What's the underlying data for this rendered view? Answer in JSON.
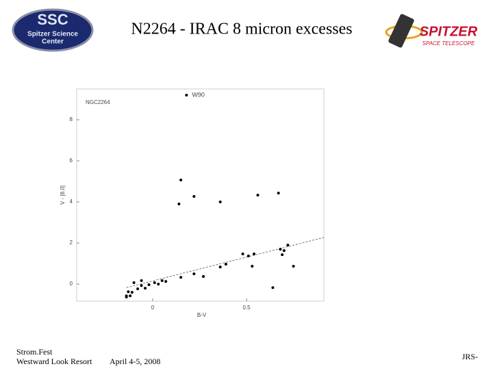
{
  "slide": {
    "title": "N2264 - IRAC 8 micron excesses",
    "footer_left": [
      "Strom.Fest",
      "Westward Look Resort"
    ],
    "footer_center": "April 4-5, 2008",
    "footer_right": "JRS-"
  },
  "logos": {
    "ssc": {
      "main": "SSC",
      "line1": "Spitzer Science",
      "line2": "Center"
    },
    "spitzer": {
      "main": "SPITZER",
      "sub": "SPACE TELESCOPE"
    }
  },
  "chart_data": {
    "type": "scatter",
    "annotation": "NGC2264",
    "xlabel": "B-V",
    "ylabel": "V - [8.0]",
    "xlim": [
      -0.405,
      0.912
    ],
    "ylim": [
      -0.83,
      9.5
    ],
    "xticks": [
      0,
      0.5
    ],
    "yticks": [
      0,
      2,
      4,
      6,
      8
    ],
    "color": "#000000",
    "point_labels": [
      {
        "index": 0,
        "label": "W90"
      }
    ],
    "x": [
      0.18,
      0.15,
      0.22,
      0.14,
      0.36,
      0.56,
      0.67,
      0.48,
      0.51,
      0.54,
      0.68,
      0.7,
      0.72,
      0.69,
      0.75,
      0.53,
      0.36,
      0.39,
      0.27,
      0.22,
      0.15,
      0.64,
      0.05,
      0.07,
      0.03,
      0.01,
      -0.02,
      -0.06,
      -0.06,
      -0.1,
      -0.08,
      -0.11,
      -0.13,
      -0.14,
      -0.12,
      -0.14,
      -0.04
    ],
    "y": [
      9.2,
      5.07,
      4.27,
      3.9,
      4.0,
      4.33,
      4.43,
      1.47,
      1.37,
      1.47,
      1.7,
      1.63,
      1.9,
      1.43,
      0.87,
      0.87,
      0.83,
      0.97,
      0.37,
      0.5,
      0.33,
      -0.17,
      0.17,
      0.13,
      0.0,
      0.07,
      -0.03,
      0.17,
      -0.07,
      0.07,
      -0.23,
      -0.4,
      -0.37,
      -0.57,
      -0.57,
      -0.63,
      -0.2
    ],
    "reference_line": {
      "x": [
        -0.14,
        0.912
      ],
      "y": [
        -0.17,
        2.27
      ]
    }
  }
}
